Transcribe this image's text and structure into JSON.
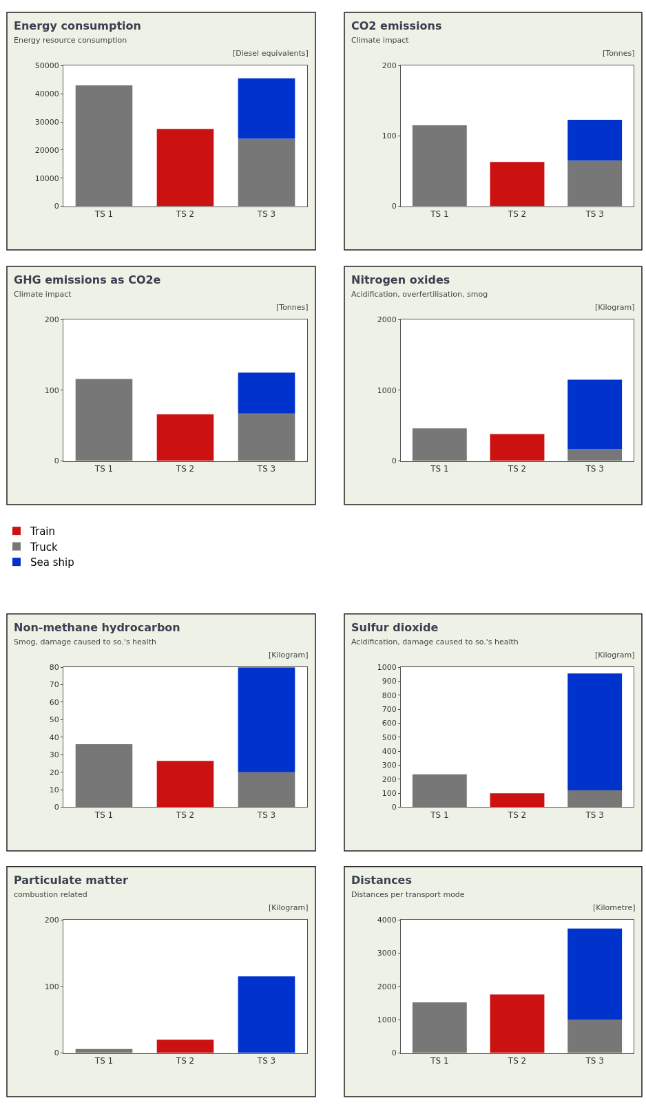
{
  "chart_data": [
    {
      "type": "bar",
      "title": "Energy consumption",
      "subtitle": "Energy resource consumption",
      "ylabel": "[Diesel equivalents]",
      "categories": [
        "TS 1",
        "TS 2",
        "TS 3"
      ],
      "stacked": true,
      "ylim": [
        0,
        50000
      ],
      "yticks": [
        0,
        10000,
        20000,
        30000,
        40000,
        50000
      ],
      "legend": "bottom left",
      "series": [
        {
          "name": "Train",
          "color": "#cc1111",
          "values": [
            null,
            27500,
            null
          ]
        },
        {
          "name": "Truck",
          "color": "#777777",
          "values": [
            43000,
            null,
            24000
          ]
        },
        {
          "name": "Sea ship",
          "color": "#0033cc",
          "values": [
            null,
            null,
            21500
          ]
        }
      ]
    },
    {
      "type": "bar",
      "title": "CO2 emissions",
      "subtitle": "Climate impact",
      "ylabel": "[Tonnes]",
      "categories": [
        "TS 1",
        "TS 2",
        "TS 3"
      ],
      "stacked": true,
      "ylim": [
        0,
        200
      ],
      "yticks": [
        0,
        100,
        200
      ],
      "series": [
        {
          "color": "#cc1111",
          "values": [
            null,
            63,
            null
          ]
        },
        {
          "color": "#777777",
          "values": [
            115,
            null,
            65
          ]
        },
        {
          "color": "#0033cc",
          "values": [
            null,
            null,
            58
          ]
        }
      ]
    },
    {
      "type": "bar",
      "title": "GHG emissions as CO2e",
      "subtitle": "Climate impact",
      "ylabel": "[Tonnes]",
      "categories": [
        "TS 1",
        "TS 2",
        "TS 3"
      ],
      "stacked": true,
      "ylim": [
        0,
        200
      ],
      "yticks": [
        0,
        100,
        200
      ],
      "series": [
        {
          "color": "#cc1111",
          "values": [
            null,
            66,
            null
          ]
        },
        {
          "color": "#777777",
          "values": [
            116,
            null,
            67
          ]
        },
        {
          "color": "#0033cc",
          "values": [
            null,
            null,
            58
          ]
        }
      ]
    },
    {
      "type": "bar",
      "title": "Nitrogen oxides",
      "subtitle": "Acidification, overfertilisation, smog",
      "ylabel": "[Kilogram]",
      "categories": [
        "TS 1",
        "TS 2",
        "TS 3"
      ],
      "stacked": true,
      "ylim": [
        0,
        2000
      ],
      "yticks": [
        0,
        1000,
        2000
      ],
      "series": [
        {
          "color": "#cc1111",
          "values": [
            null,
            380,
            null
          ]
        },
        {
          "color": "#777777",
          "values": [
            460,
            null,
            170
          ]
        },
        {
          "color": "#0033cc",
          "values": [
            null,
            null,
            980
          ]
        }
      ]
    },
    {
      "type": "bar",
      "title": "Non-methane hydrocarbon",
      "subtitle": "Smog, damage caused to so.'s health",
      "ylabel": "[Kilogram]",
      "categories": [
        "TS 1",
        "TS 2",
        "TS 3"
      ],
      "stacked": true,
      "ylim": [
        0,
        80
      ],
      "yticks": [
        0,
        10,
        20,
        30,
        40,
        50,
        60,
        70,
        80
      ],
      "series": [
        {
          "color": "#cc1111",
          "values": [
            null,
            26.5,
            null
          ]
        },
        {
          "color": "#777777",
          "values": [
            36,
            null,
            20
          ]
        },
        {
          "color": "#0033cc",
          "values": [
            null,
            null,
            60
          ]
        }
      ]
    },
    {
      "type": "bar",
      "title": "Sulfur dioxide",
      "subtitle": "Acidification, damage caused to so.'s health",
      "ylabel": "[Kilogram]",
      "categories": [
        "TS 1",
        "TS 2",
        "TS 3"
      ],
      "stacked": true,
      "ylim": [
        0,
        1000
      ],
      "yticks": [
        0,
        100,
        200,
        300,
        400,
        500,
        600,
        700,
        800,
        900,
        1000
      ],
      "series": [
        {
          "color": "#cc1111",
          "values": [
            null,
            100,
            null
          ]
        },
        {
          "color": "#777777",
          "values": [
            235,
            null,
            120
          ]
        },
        {
          "color": "#0033cc",
          "values": [
            null,
            null,
            835
          ]
        }
      ]
    },
    {
      "type": "bar",
      "title": "Particulate matter",
      "subtitle": "combustion related",
      "ylabel": "[Kilogram]",
      "categories": [
        "TS 1",
        "TS 2",
        "TS 3"
      ],
      "stacked": true,
      "ylim": [
        0,
        200
      ],
      "yticks": [
        0,
        100,
        200
      ],
      "series": [
        {
          "color": "#cc1111",
          "values": [
            null,
            20,
            null
          ]
        },
        {
          "color": "#777777",
          "values": [
            6,
            null,
            null
          ]
        },
        {
          "color": "#0033cc",
          "values": [
            null,
            null,
            115
          ]
        }
      ]
    },
    {
      "type": "bar",
      "title": "Distances",
      "subtitle": "Distances per transport mode",
      "ylabel": "[Kilometre]",
      "categories": [
        "TS 1",
        "TS 2",
        "TS 3"
      ],
      "stacked": true,
      "ylim": [
        0,
        4000
      ],
      "yticks": [
        0,
        1000,
        2000,
        3000,
        4000
      ],
      "series": [
        {
          "color": "#cc1111",
          "values": [
            null,
            1760,
            null
          ]
        },
        {
          "color": "#777777",
          "values": [
            1520,
            null,
            1000
          ]
        },
        {
          "color": "#0033cc",
          "values": [
            null,
            null,
            2740
          ]
        }
      ]
    }
  ]
}
